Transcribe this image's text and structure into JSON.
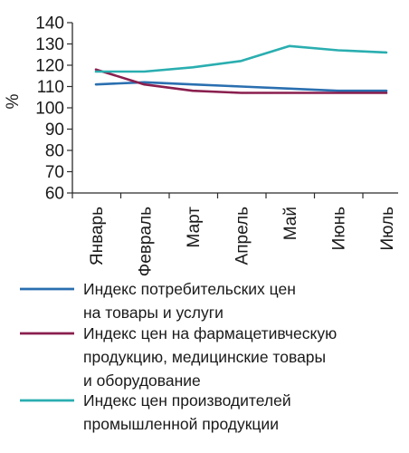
{
  "chart_data": {
    "type": "line",
    "ylabel": "%",
    "ylim": [
      60,
      140
    ],
    "yticks": [
      60,
      70,
      80,
      90,
      100,
      110,
      120,
      130,
      140
    ],
    "categories": [
      "Январь",
      "Февраль",
      "Март",
      "Апрель",
      "Май",
      "Июнь",
      "Июль"
    ],
    "grid": false,
    "legend_position": "bottom",
    "series": [
      {
        "name": "Индекс потребительских цен на товары и услуги",
        "name_lines": [
          "Индекс потребительских цен",
          "на товары и услуги"
        ],
        "color": "#2a6fb0",
        "values": [
          111,
          112,
          111,
          110,
          109,
          108,
          108
        ]
      },
      {
        "name": "Индекс цен на фармацетивческую продукцию, медицинские товары и оборудование",
        "name_lines": [
          "Индекс цен на фармацетивческую",
          "продукцию, медицинские товары",
          "и оборудование"
        ],
        "color": "#8a1f4e",
        "values": [
          118,
          111,
          108,
          107,
          107,
          107,
          107
        ]
      },
      {
        "name": "Индекс цен производителей промышленной продукции",
        "name_lines": [
          "Индекс цен производителей",
          "промышленной продукции"
        ],
        "color": "#2aaeb0",
        "values": [
          117,
          117,
          119,
          122,
          129,
          127,
          126
        ]
      }
    ]
  }
}
